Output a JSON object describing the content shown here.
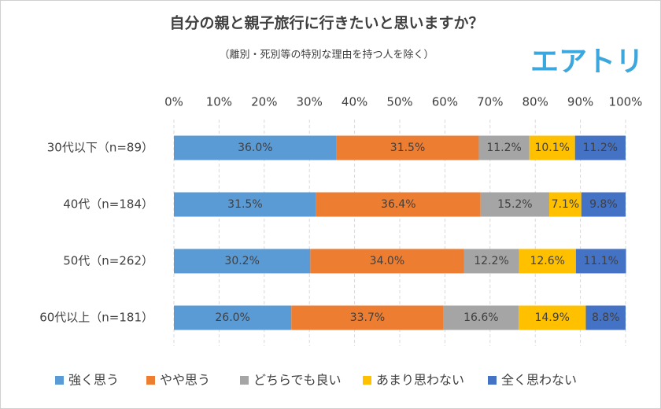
{
  "chart_data": {
    "type": "stacked_bar_horizontal",
    "title": "自分の親と親子旅行に行きたいと思いますか？",
    "subtitle": "（離別・死別等の特別な理由を持つ人を除く）",
    "logo": "エアトリ",
    "categories": [
      "30代以下（n=89）",
      "40代（n=184）",
      "50代（n=262）",
      "60代以上（n=181）"
    ],
    "series": [
      {
        "name": "強く思う",
        "color": "#5b9bd5",
        "values": [
          36.0,
          31.5,
          30.2,
          26.0
        ],
        "value_labels": [
          "36.0%",
          "31.5%",
          "30.2%",
          "26.0%"
        ]
      },
      {
        "name": "やや思う",
        "color": "#ed7d31",
        "values": [
          31.5,
          36.4,
          34.0,
          33.7
        ],
        "value_labels": [
          "31.5%",
          "36.4%",
          "34.0%",
          "33.7%"
        ]
      },
      {
        "name": "どちらでも良い",
        "color": "#a5a5a5",
        "values": [
          11.2,
          15.2,
          12.2,
          16.6
        ],
        "value_labels": [
          "11.2%",
          "15.2%",
          "12.2%",
          "16.6%"
        ]
      },
      {
        "name": "あまり思わない",
        "color": "#ffc000",
        "values": [
          10.1,
          7.1,
          12.6,
          14.9
        ],
        "value_labels": [
          "10.1%",
          "7.1%",
          "12.6%",
          "14.9%"
        ]
      },
      {
        "name": "全く思わない",
        "color": "#4472c4",
        "values": [
          11.2,
          9.8,
          11.1,
          8.8
        ],
        "value_labels": [
          "11.2%",
          "9.8%",
          "11.1%",
          "8.8%"
        ]
      }
    ],
    "xlim": [
      0,
      100
    ],
    "xticks": [
      {
        "value": 0,
        "label": "0%"
      },
      {
        "value": 10,
        "label": "10%"
      },
      {
        "value": 20,
        "label": "20%"
      },
      {
        "value": 30,
        "label": "30%"
      },
      {
        "value": 40,
        "label": "40%"
      },
      {
        "value": 50,
        "label": "50%"
      },
      {
        "value": 60,
        "label": "60%"
      },
      {
        "value": 70,
        "label": "70%"
      },
      {
        "value": 80,
        "label": "80%"
      },
      {
        "value": 90,
        "label": "90%"
      },
      {
        "value": 100,
        "label": "100%"
      }
    ],
    "grid": true,
    "legend": "bottom"
  }
}
